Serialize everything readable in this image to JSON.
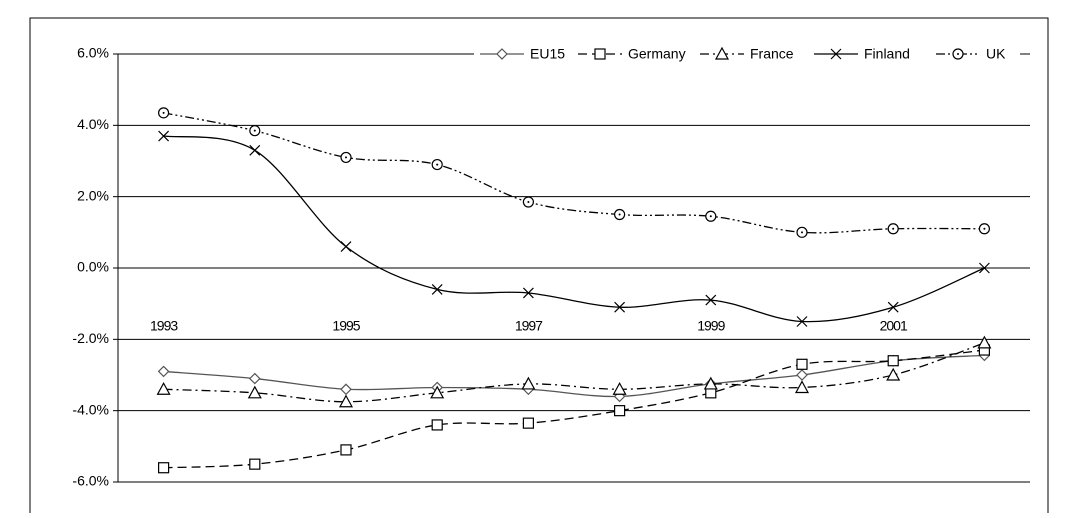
{
  "chart_data": {
    "type": "line",
    "categories": [
      "1993",
      null,
      "1995",
      null,
      "1997",
      null,
      "1999",
      null,
      "2001",
      null
    ],
    "series": [
      {
        "name": "EU15",
        "color": "#555555",
        "marker": "diamond",
        "dash": "solid",
        "values": [
          -2.9,
          -3.1,
          -3.4,
          -3.35,
          -3.4,
          -3.6,
          -3.25,
          -3.0,
          -2.6,
          -2.45
        ]
      },
      {
        "name": "Germany",
        "color": "#000000",
        "marker": "square",
        "dash": "dashed",
        "values": [
          -5.6,
          -5.5,
          -5.1,
          -4.4,
          -4.35,
          -4.0,
          -3.5,
          -2.7,
          -2.6,
          -2.3
        ]
      },
      {
        "name": "France",
        "color": "#000000",
        "marker": "triangle",
        "dash": "dash-dot",
        "values": [
          -3.4,
          -3.5,
          -3.75,
          -3.5,
          -3.25,
          -3.4,
          -3.25,
          -3.35,
          -3.0,
          -2.1
        ]
      },
      {
        "name": "Finland",
        "color": "#000000",
        "marker": "x",
        "dash": "solid",
        "values": [
          3.7,
          3.3,
          0.6,
          -0.6,
          -0.7,
          -1.1,
          -0.9,
          -1.5,
          -1.1,
          0.0
        ]
      },
      {
        "name": "UK",
        "color": "#000000",
        "marker": "circle",
        "dash": "dash-dot-dot",
        "values": [
          4.35,
          3.85,
          3.1,
          2.9,
          1.85,
          1.5,
          1.45,
          1.0,
          1.1,
          1.1
        ]
      }
    ],
    "ylim": [
      -6,
      6
    ],
    "yticks": [
      {
        "value": -6,
        "label": "-6.0%"
      },
      {
        "value": -4,
        "label": "-4.0%"
      },
      {
        "value": -2,
        "label": "-2.0%"
      },
      {
        "value": 0,
        "label": "0.0%"
      },
      {
        "value": 2,
        "label": "2.0%"
      },
      {
        "value": 4,
        "label": "4.0%"
      },
      {
        "value": 6,
        "label": "6.0%"
      }
    ],
    "grid": true,
    "legend": "top"
  }
}
